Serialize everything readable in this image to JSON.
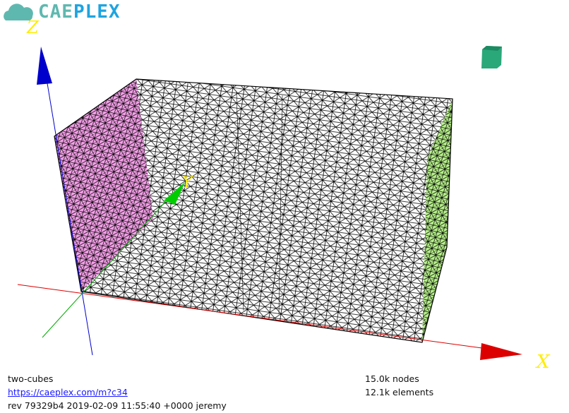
{
  "logo": {
    "part1": "CAE",
    "part2": "PLEX"
  },
  "axes": {
    "x": "X",
    "y": "Y",
    "z": "Z"
  },
  "model": {
    "name": "two-cubes",
    "link": "https://caeplex.com/m?c34",
    "revision": "rev 79329b4 2019-02-09 11:55:40 +0000 jeremy"
  },
  "stats": {
    "nodes": "15.0k nodes",
    "elements": "12.1k elements"
  },
  "colors": {
    "x_axis": "#dd0000",
    "y_axis": "#00aa00",
    "z_axis": "#0000cc",
    "face_left": "#f4a0e8",
    "face_right": "#b6f08a",
    "view_cube": "#2aa87a"
  }
}
